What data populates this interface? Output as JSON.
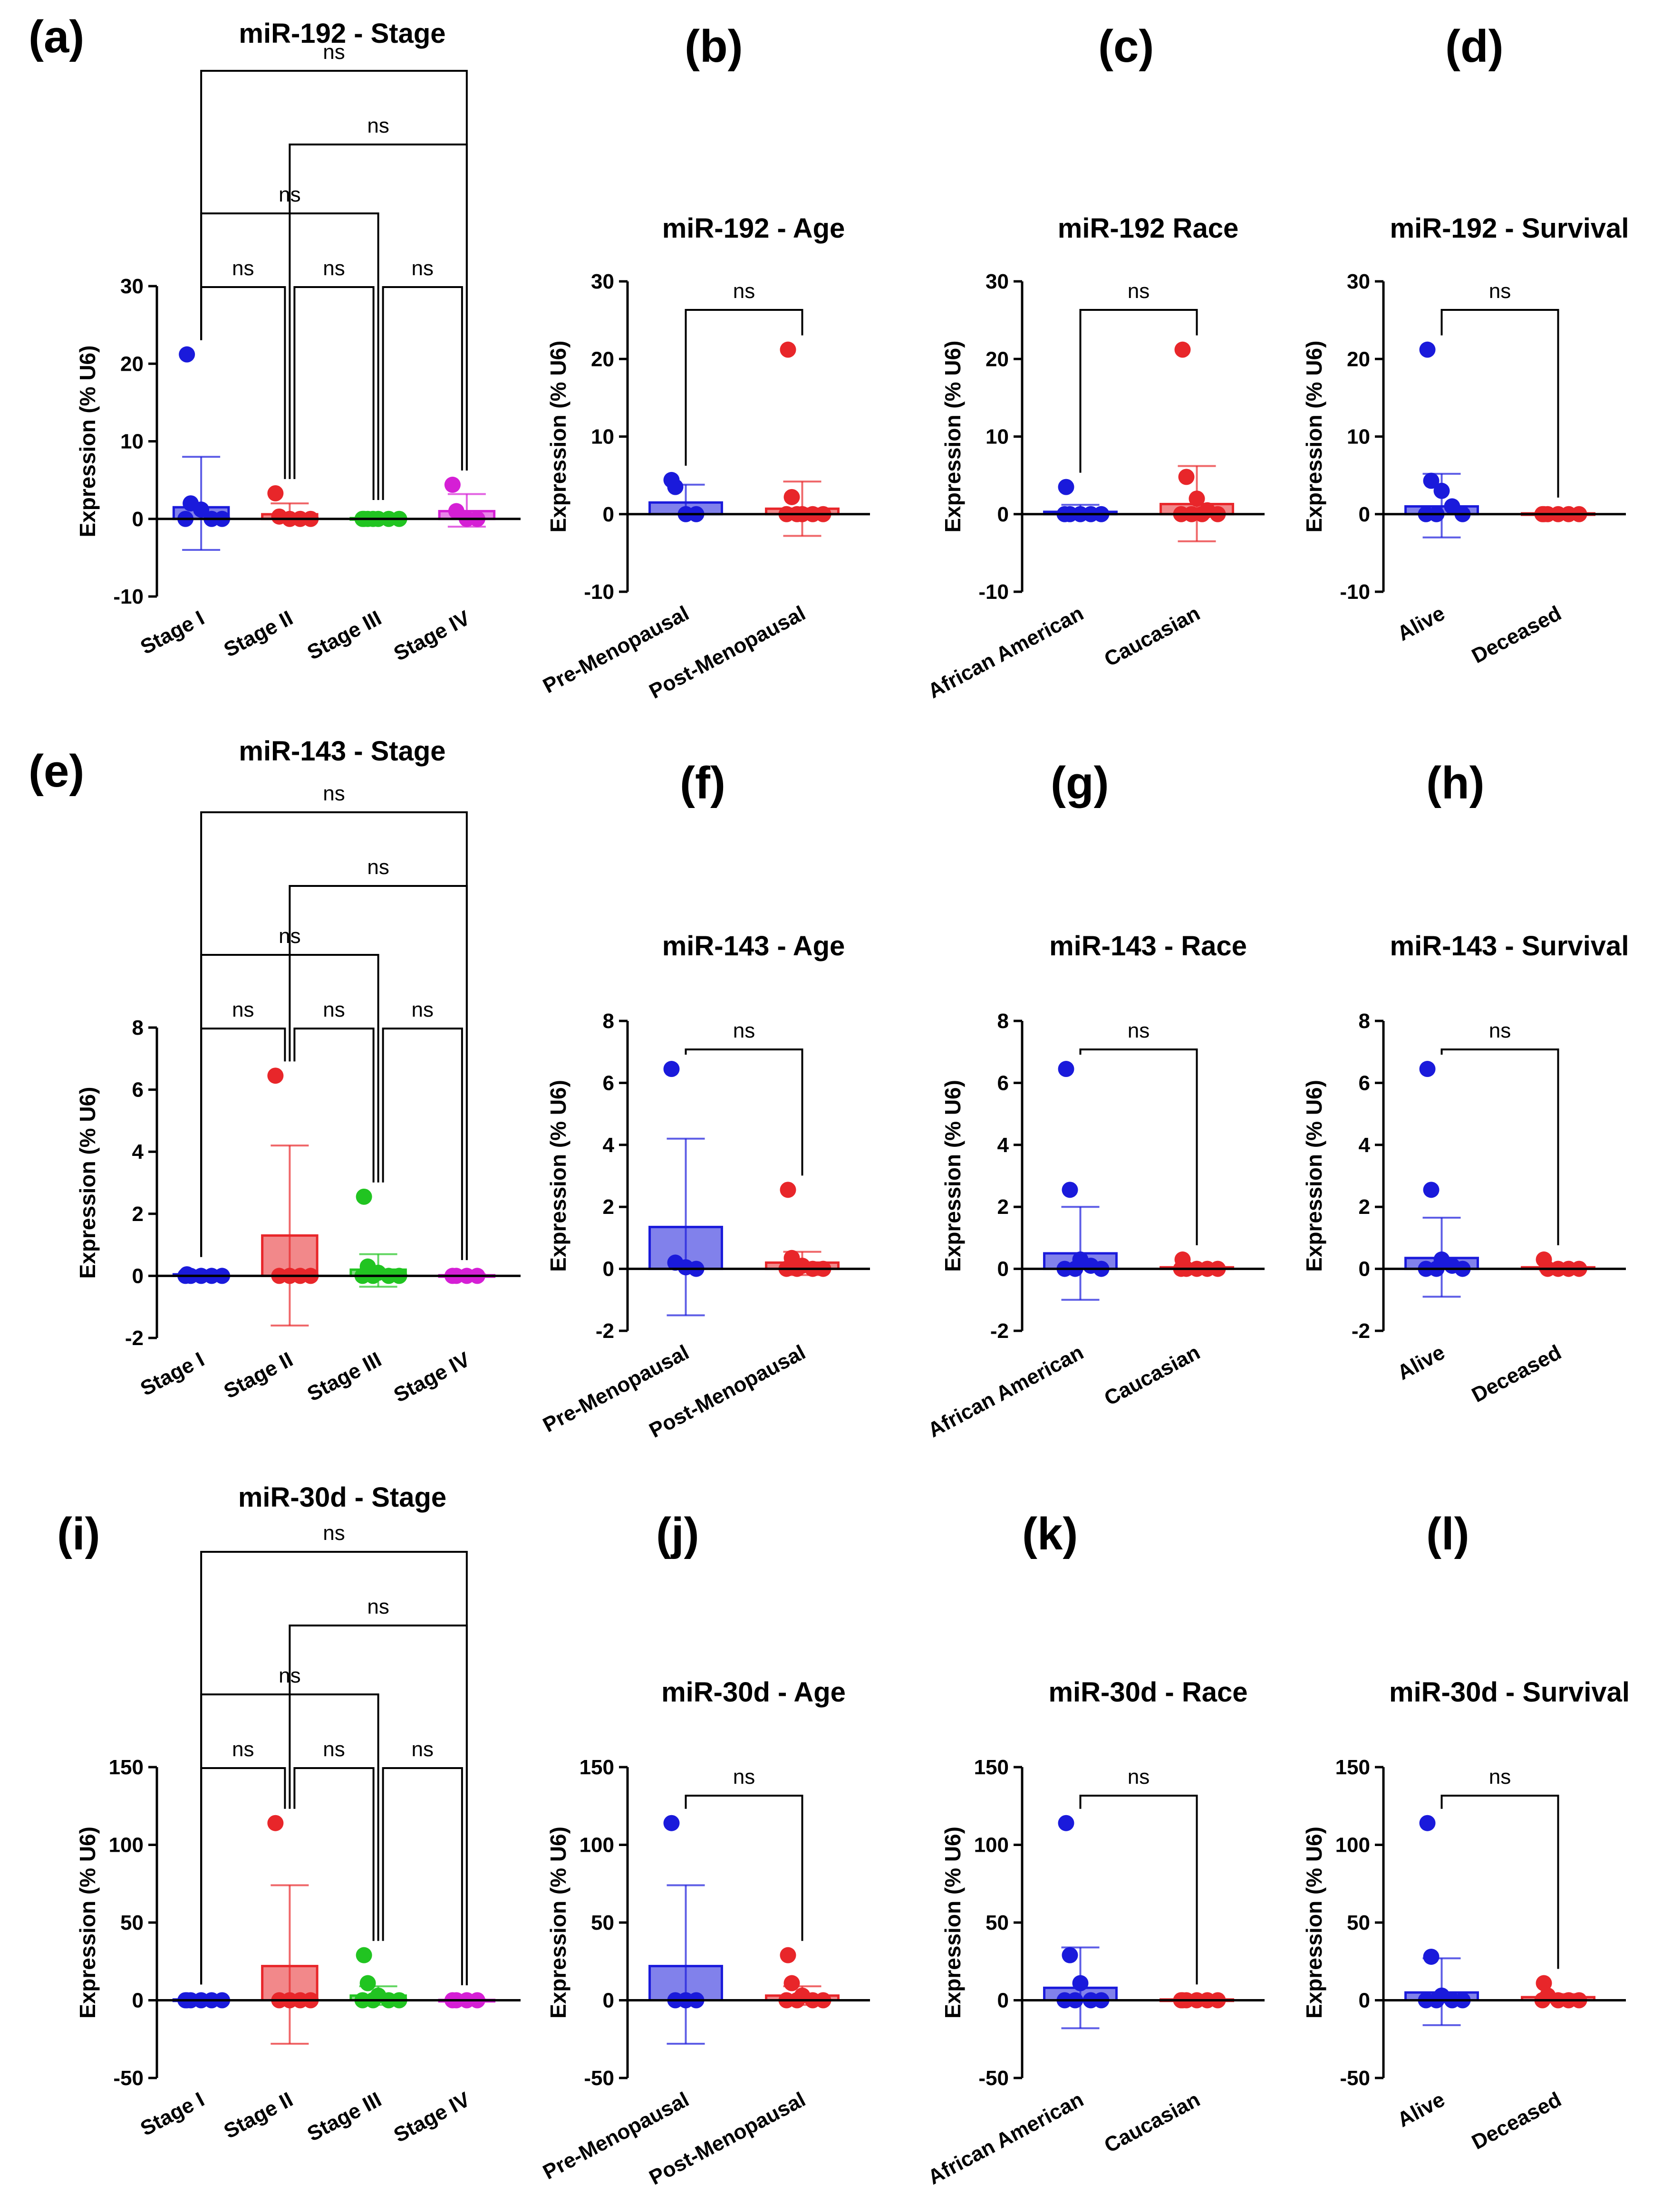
{
  "chart_data": [
    {
      "id": "a",
      "type": "bar",
      "letter": "(a)",
      "title": "miR-192 - Stage",
      "ylabel": "Expression (% U6)",
      "ylim": [
        -10,
        30
      ],
      "yticks": [
        -10,
        0,
        10,
        20,
        30
      ],
      "categories": [
        "Stage I",
        "Stage II",
        "Stage III",
        "Stage IV"
      ],
      "colors": [
        "#1a1adb",
        "#e8262a",
        "#21c421",
        "#d51fd5"
      ],
      "bars": [
        1.5,
        0.6,
        0.1,
        1.0
      ],
      "err_high": [
        8,
        2,
        0.6,
        3.2
      ],
      "err_low": [
        -4,
        0,
        -0.3,
        -1
      ],
      "points": [
        [
          21.2,
          2,
          1.2,
          0,
          0,
          0
        ],
        [
          3.3,
          0.3,
          0,
          0,
          0
        ],
        [
          0,
          0,
          0,
          0,
          0,
          0,
          0
        ],
        [
          4.4,
          1,
          0,
          0
        ]
      ],
      "comparisons": [
        {
          "a": 0,
          "b": 1,
          "label": "ns"
        },
        {
          "a": 1,
          "b": 2,
          "label": "ns"
        },
        {
          "a": 2,
          "b": 3,
          "label": "ns"
        },
        {
          "a": 0,
          "b": 2,
          "label": "ns"
        },
        {
          "a": 1,
          "b": 3,
          "label": "ns"
        },
        {
          "a": 0,
          "b": 3,
          "label": "ns"
        }
      ]
    },
    {
      "id": "b",
      "type": "bar",
      "letter": "(b)",
      "title": "miR-192 - Age",
      "ylabel": "Expression (% U6)",
      "ylim": [
        -10,
        30
      ],
      "yticks": [
        -10,
        0,
        10,
        20,
        30
      ],
      "categories": [
        "Pre-Menopausal",
        "Post-Menopausal"
      ],
      "colors": [
        "#1a1adb",
        "#e8262a"
      ],
      "bars": [
        1.5,
        0.7
      ],
      "err_high": [
        3.8,
        4.2
      ],
      "err_low": [
        0,
        -2.8
      ],
      "points": [
        [
          4.4,
          3.5,
          0,
          0
        ],
        [
          21.2,
          2.2,
          0,
          0,
          0,
          0,
          0
        ]
      ],
      "comparisons": [
        {
          "a": 0,
          "b": 1,
          "label": "ns"
        }
      ]
    },
    {
      "id": "c",
      "type": "bar",
      "letter": "(c)",
      "title": "miR-192 Race",
      "ylabel": "Expression (% U6)",
      "ylim": [
        -10,
        30
      ],
      "yticks": [
        -10,
        0,
        10,
        20,
        30
      ],
      "categories": [
        "African American",
        "Caucasian"
      ],
      "colors": [
        "#1a1adb",
        "#e8262a"
      ],
      "bars": [
        0.3,
        1.3
      ],
      "err_high": [
        1.2,
        6.2
      ],
      "err_low": [
        -0.5,
        -3.5
      ],
      "points": [
        [
          3.5,
          0,
          0,
          0,
          0,
          0
        ],
        [
          21.2,
          4.8,
          2,
          0.5,
          0,
          0,
          0,
          0
        ]
      ],
      "comparisons": [
        {
          "a": 0,
          "b": 1,
          "label": "ns"
        }
      ]
    },
    {
      "id": "d",
      "type": "bar",
      "letter": "(d)",
      "title": "miR-192 - Survival",
      "ylabel": "Expression (% U6)",
      "ylim": [
        -10,
        30
      ],
      "yticks": [
        -10,
        0,
        10,
        20,
        30
      ],
      "categories": [
        "Alive",
        "Deceased"
      ],
      "colors": [
        "#1a1adb",
        "#e8262a"
      ],
      "bars": [
        1.0,
        0.1
      ],
      "err_high": [
        5.2,
        0.3
      ],
      "err_low": [
        -3,
        -0.1
      ],
      "points": [
        [
          21.2,
          4.3,
          3,
          1,
          0,
          0,
          0
        ],
        [
          0,
          0,
          0,
          0,
          0,
          0
        ]
      ],
      "comparisons": [
        {
          "a": 0,
          "b": 1,
          "label": "ns"
        }
      ]
    },
    {
      "id": "e",
      "type": "bar",
      "letter": "(e)",
      "title": "miR-143 - Stage",
      "ylabel": "Expression (% U6)",
      "ylim": [
        -2,
        8
      ],
      "yticks": [
        -2,
        0,
        2,
        4,
        6,
        8
      ],
      "categories": [
        "Stage I",
        "Stage II",
        "Stage III",
        "Stage IV"
      ],
      "colors": [
        "#1a1adb",
        "#e8262a",
        "#21c421",
        "#d51fd5"
      ],
      "bars": [
        0.05,
        1.3,
        0.2,
        0.02
      ],
      "err_high": [
        0.15,
        4.2,
        0.7,
        0.05
      ],
      "err_low": [
        -0.05,
        -1.6,
        -0.35,
        0
      ],
      "points": [
        [
          0.05,
          0,
          0,
          0,
          0,
          0
        ],
        [
          6.45,
          0,
          0,
          0,
          0
        ],
        [
          2.55,
          0.3,
          0.1,
          0,
          0,
          0,
          0
        ],
        [
          0,
          0,
          0,
          0
        ]
      ],
      "comparisons": [
        {
          "a": 0,
          "b": 1,
          "label": "ns"
        },
        {
          "a": 1,
          "b": 2,
          "label": "ns"
        },
        {
          "a": 2,
          "b": 3,
          "label": "ns"
        },
        {
          "a": 0,
          "b": 2,
          "label": "ns"
        },
        {
          "a": 1,
          "b": 3,
          "label": "ns"
        },
        {
          "a": 0,
          "b": 3,
          "label": "ns"
        }
      ]
    },
    {
      "id": "f",
      "type": "bar",
      "letter": "(f)",
      "title": "miR-143 - Age",
      "ylabel": "Expression (% U6)",
      "ylim": [
        -2,
        8
      ],
      "yticks": [
        -2,
        0,
        2,
        4,
        6,
        8
      ],
      "categories": [
        "Pre-Menopausal",
        "Post-Menopausal"
      ],
      "colors": [
        "#1a1adb",
        "#e8262a"
      ],
      "bars": [
        1.35,
        0.2
      ],
      "err_high": [
        4.2,
        0.55
      ],
      "err_low": [
        -1.5,
        -0.2
      ],
      "points": [
        [
          6.45,
          0.2,
          0.05,
          0
        ],
        [
          2.55,
          0.35,
          0.1,
          0,
          0,
          0,
          0
        ]
      ],
      "comparisons": [
        {
          "a": 0,
          "b": 1,
          "label": "ns"
        }
      ]
    },
    {
      "id": "g",
      "type": "bar",
      "letter": "(g)",
      "title": "miR-143 - Race",
      "ylabel": "Expression (% U6)",
      "ylim": [
        -2,
        8
      ],
      "yticks": [
        -2,
        0,
        2,
        4,
        6,
        8
      ],
      "categories": [
        "African American",
        "Caucasian"
      ],
      "colors": [
        "#1a1adb",
        "#e8262a"
      ],
      "bars": [
        0.5,
        0.05
      ],
      "err_high": [
        2.0,
        0.15
      ],
      "err_low": [
        -1.0,
        -0.05
      ],
      "points": [
        [
          6.45,
          2.55,
          0.3,
          0.1,
          0,
          0,
          0
        ],
        [
          0.3,
          0,
          0,
          0,
          0,
          0
        ]
      ],
      "comparisons": [
        {
          "a": 0,
          "b": 1,
          "label": "ns"
        }
      ]
    },
    {
      "id": "h",
      "type": "bar",
      "letter": "(h)",
      "title": "miR-143 - Survival",
      "ylabel": "Expression (% U6)",
      "ylim": [
        -2,
        8
      ],
      "yticks": [
        -2,
        0,
        2,
        4,
        6,
        8
      ],
      "categories": [
        "Alive",
        "Deceased"
      ],
      "colors": [
        "#1a1adb",
        "#e8262a"
      ],
      "bars": [
        0.35,
        0.05
      ],
      "err_high": [
        1.65,
        0.15
      ],
      "err_low": [
        -0.9,
        -0.05
      ],
      "points": [
        [
          6.45,
          2.55,
          0.3,
          0.1,
          0,
          0,
          0
        ],
        [
          0.3,
          0,
          0,
          0,
          0
        ]
      ],
      "comparisons": [
        {
          "a": 0,
          "b": 1,
          "label": "ns"
        }
      ]
    },
    {
      "id": "i",
      "type": "bar",
      "letter": "(i)",
      "title": "miR-30d - Stage",
      "ylabel": "Expression (% U6)",
      "ylim": [
        -50,
        150
      ],
      "yticks": [
        -50,
        0,
        50,
        100,
        150
      ],
      "categories": [
        "Stage I",
        "Stage II",
        "Stage III",
        "Stage IV"
      ],
      "colors": [
        "#1a1adb",
        "#e8262a",
        "#21c421",
        "#d51fd5"
      ],
      "bars": [
        0.5,
        22,
        3,
        0.2
      ],
      "err_high": [
        1,
        74,
        9,
        0.5
      ],
      "err_low": [
        0,
        -28,
        -3,
        0
      ],
      "points": [
        [
          0,
          0,
          0,
          0,
          0,
          0
        ],
        [
          114,
          0,
          0,
          0,
          0
        ],
        [
          29,
          11,
          3,
          0,
          0,
          0,
          0
        ],
        [
          0,
          0,
          0,
          0
        ]
      ],
      "comparisons": [
        {
          "a": 0,
          "b": 1,
          "label": "ns"
        },
        {
          "a": 1,
          "b": 2,
          "label": "ns"
        },
        {
          "a": 2,
          "b": 3,
          "label": "ns"
        },
        {
          "a": 0,
          "b": 2,
          "label": "ns"
        },
        {
          "a": 1,
          "b": 3,
          "label": "ns"
        },
        {
          "a": 0,
          "b": 3,
          "label": "ns"
        }
      ]
    },
    {
      "id": "j",
      "type": "bar",
      "letter": "(j)",
      "title": "miR-30d - Age",
      "ylabel": "Expression (% U6)",
      "ylim": [
        -50,
        150
      ],
      "yticks": [
        -50,
        0,
        50,
        100,
        150
      ],
      "categories": [
        "Pre-Menopausal",
        "Post-Menopausal"
      ],
      "colors": [
        "#1a1adb",
        "#e8262a"
      ],
      "bars": [
        22,
        3
      ],
      "err_high": [
        74,
        9
      ],
      "err_low": [
        -28,
        -3
      ],
      "points": [
        [
          114,
          0,
          0,
          0
        ],
        [
          29,
          11,
          3,
          0,
          0,
          0,
          0
        ]
      ],
      "comparisons": [
        {
          "a": 0,
          "b": 1,
          "label": "ns"
        }
      ]
    },
    {
      "id": "k",
      "type": "bar",
      "letter": "(k)",
      "title": "miR-30d - Race",
      "ylabel": "Expression (% U6)",
      "ylim": [
        -50,
        150
      ],
      "yticks": [
        -50,
        0,
        50,
        100,
        150
      ],
      "categories": [
        "African American",
        "Caucasian"
      ],
      "colors": [
        "#1a1adb",
        "#e8262a"
      ],
      "bars": [
        8,
        0.5
      ],
      "err_high": [
        34,
        1
      ],
      "err_low": [
        -18,
        0
      ],
      "points": [
        [
          114,
          29,
          11,
          0,
          0,
          0,
          0
        ],
        [
          0,
          0,
          0,
          0,
          0,
          0
        ]
      ],
      "comparisons": [
        {
          "a": 0,
          "b": 1,
          "label": "ns"
        }
      ]
    },
    {
      "id": "l",
      "type": "bar",
      "letter": "(l)",
      "title": "miR-30d - Survival",
      "ylabel": "Expression (% U6)",
      "ylim": [
        -50,
        150
      ],
      "yticks": [
        -50,
        0,
        50,
        100,
        150
      ],
      "categories": [
        "Alive",
        "Deceased"
      ],
      "colors": [
        "#1a1adb",
        "#e8262a"
      ],
      "bars": [
        5,
        2
      ],
      "err_high": [
        27,
        4
      ],
      "err_low": [
        -16,
        0
      ],
      "points": [
        [
          114,
          28,
          3,
          0,
          0,
          0,
          0
        ],
        [
          11,
          3,
          0,
          0,
          0,
          0
        ]
      ],
      "comparisons": [
        {
          "a": 0,
          "b": 1,
          "label": "ns"
        }
      ]
    }
  ]
}
